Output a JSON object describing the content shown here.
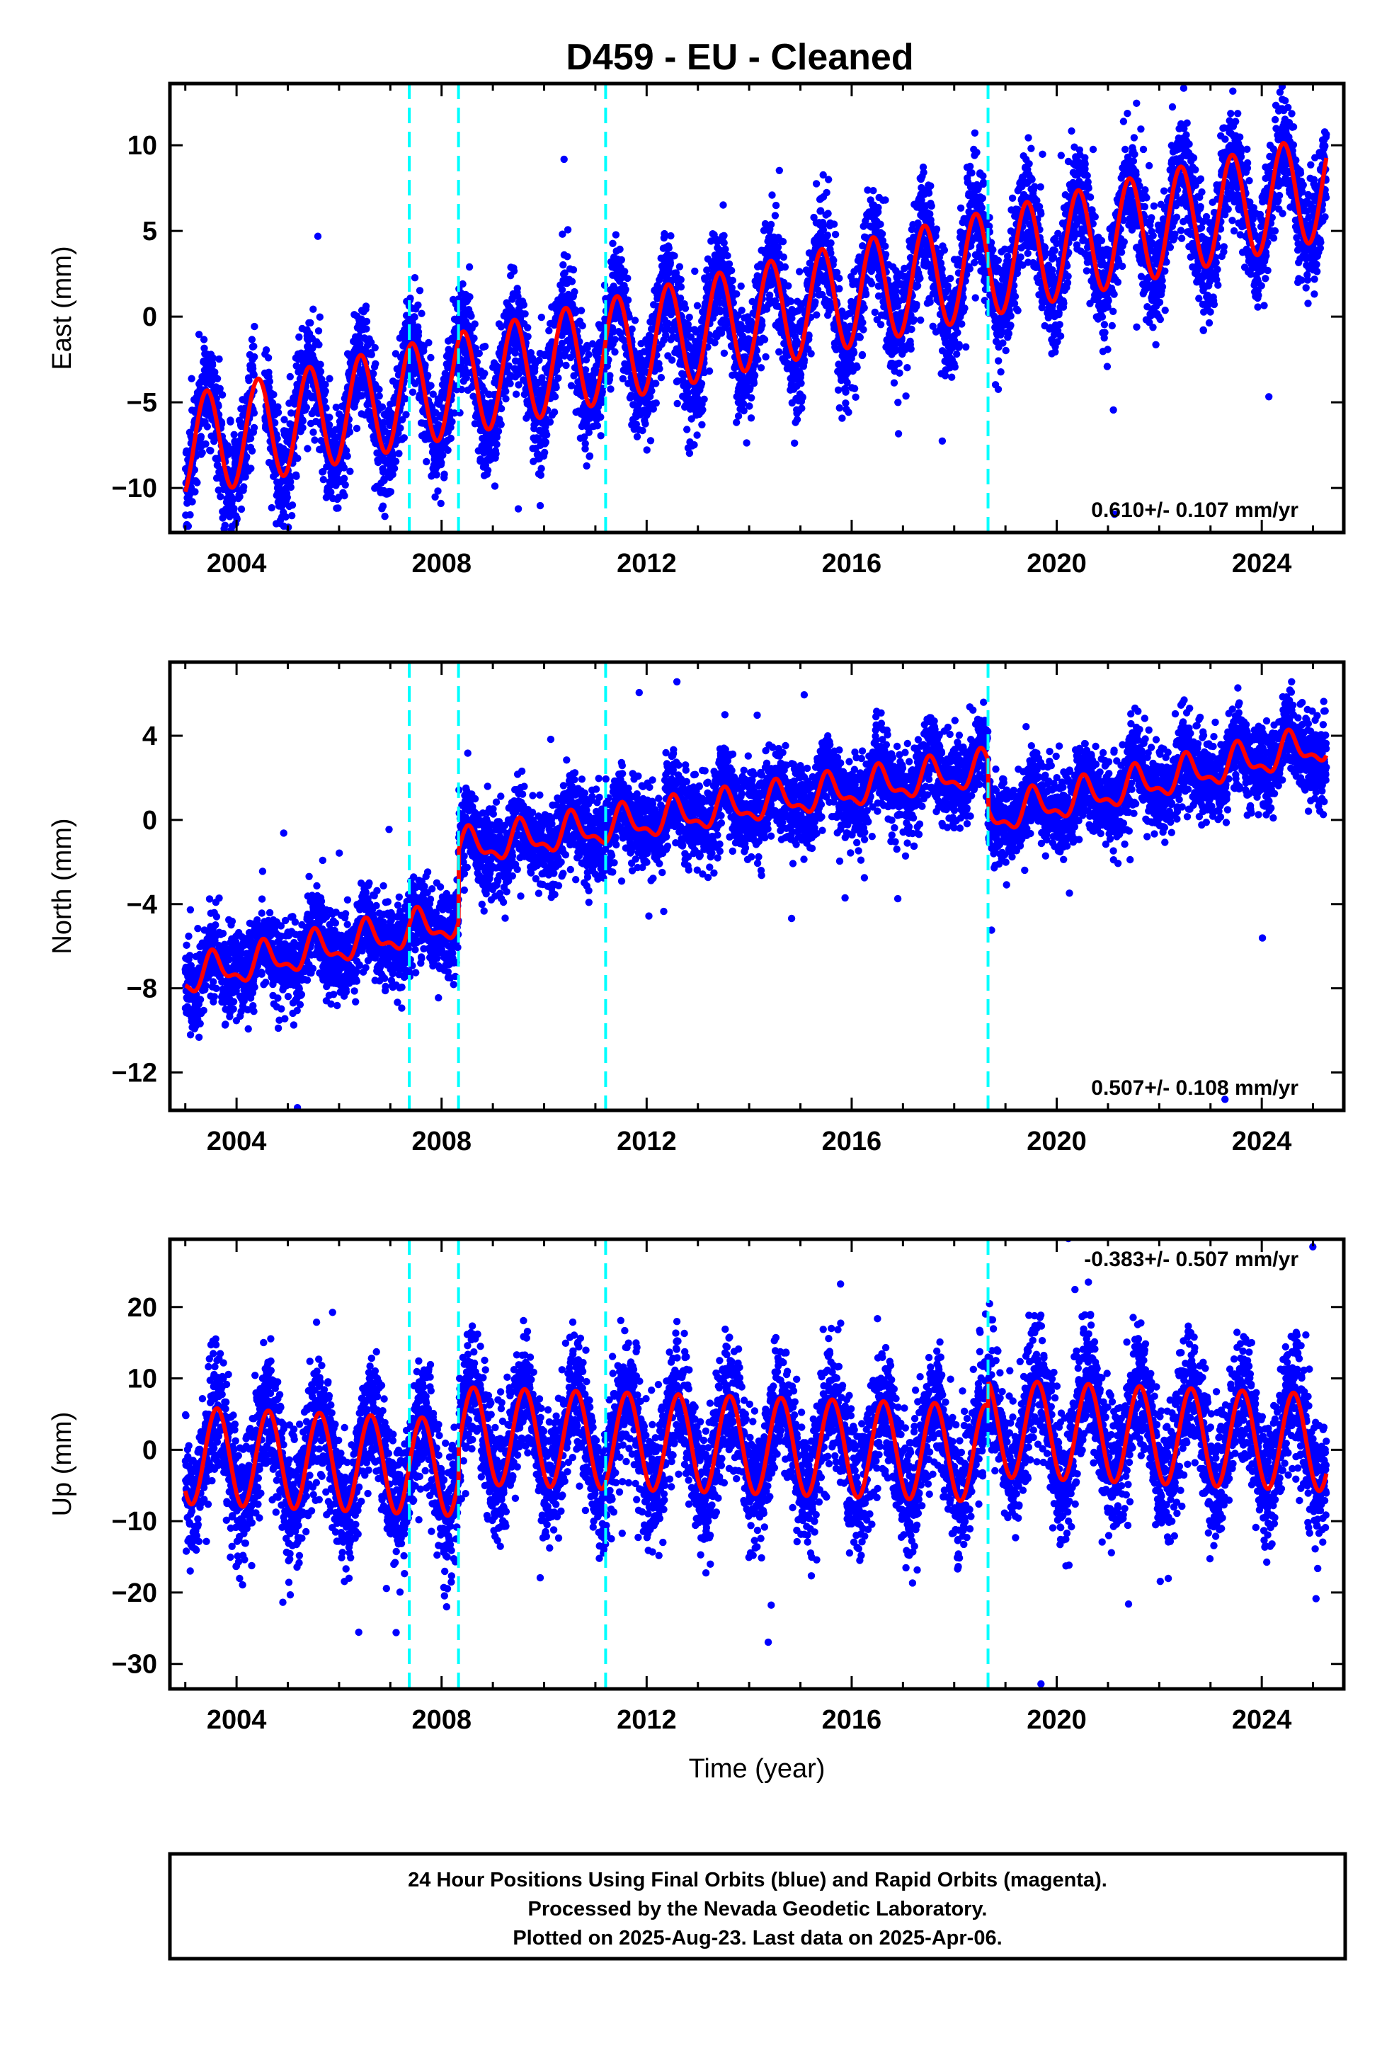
{
  "title": "D459  - EU - Cleaned",
  "footer": {
    "lines": [
      "24 Hour Positions Using Final Orbits (blue) and Rapid Orbits (magenta).",
      "Processed by the Nevada Geodetic Laboratory.",
      "Plotted on 2025-Aug-23. Last data on 2025-Apr-06."
    ]
  },
  "chart_data": [
    {
      "type": "scatter",
      "ylabel": "East (mm)",
      "xlabel": "",
      "xlim": [
        2002.7,
        2025.6
      ],
      "ylim": [
        -12.6,
        13.6
      ],
      "xticks": [
        2004,
        2008,
        2012,
        2016,
        2020,
        2024
      ],
      "yticks": [
        -10,
        -5,
        0,
        5,
        10
      ],
      "ytick_labels": [
        "−10",
        "−5",
        "0",
        "5",
        "10"
      ],
      "rate_label": "0.610+/- 0.107 mm/yr",
      "rate_position": "bottom-right",
      "offset_lines": [
        2007.37,
        2008.33,
        2011.2,
        2018.66
      ],
      "colors": {
        "points": "#0000ff",
        "model": "#ff0000",
        "offsets": "#00ffff"
      },
      "model": {
        "start": 2003.0,
        "end": 2025.26,
        "points": [
          [
            2003.0,
            -7.6
          ],
          [
            2025.26,
            7.6
          ]
        ],
        "annual_amplitude_start": 3.0,
        "annual_amplitude_end": 3.1,
        "peak_phase": 0.42
      },
      "scatter_summary": {
        "spread_mm": 1.6,
        "gaps": [
          [
            2004.35,
            2004.55
          ]
        ]
      }
    },
    {
      "type": "scatter",
      "ylabel": "North (mm)",
      "xlabel": "",
      "xlim": [
        2002.7,
        2025.6
      ],
      "ylim": [
        -13.8,
        7.5
      ],
      "xticks": [
        2004,
        2008,
        2012,
        2016,
        2020,
        2024
      ],
      "yticks": [
        -12,
        -8,
        -4,
        0,
        4
      ],
      "ytick_labels": [
        "−12",
        "−8",
        "−4",
        "0",
        "4"
      ],
      "rate_label": "0.507+/- 0.108 mm/yr",
      "rate_position": "bottom-right",
      "offset_lines": [
        2007.37,
        2008.33,
        2011.2,
        2018.66
      ],
      "colors": {
        "points": "#0000ff",
        "model": "#ff0000",
        "offsets": "#00ffff"
      },
      "model": {
        "segments": [
          {
            "start": 2003.0,
            "end": 2008.33,
            "from": -7.5,
            "to": -4.8
          },
          {
            "start": 2008.33,
            "end": 2018.66,
            "from": -1.4,
            "to": 2.4
          },
          {
            "start": 2018.66,
            "end": 2025.26,
            "from": 0.1,
            "to": 3.6
          }
        ],
        "annual_amplitude": 0.75,
        "semiannual_amplitude": 0.35,
        "peak_phase": 0.55
      },
      "scatter_summary": {
        "spread_mm": 1.0
      }
    },
    {
      "type": "scatter",
      "ylabel": "Up (mm)",
      "xlabel": "Time (year)",
      "xlim": [
        2002.7,
        2025.6
      ],
      "ylim": [
        -33.5,
        29.5
      ],
      "xticks": [
        2004,
        2008,
        2012,
        2016,
        2020,
        2024
      ],
      "yticks": [
        -30,
        -20,
        -10,
        0,
        10,
        20
      ],
      "ytick_labels": [
        "−30",
        "−20",
        "−10",
        "0",
        "10",
        "20"
      ],
      "rate_label": "-0.383+/- 0.507 mm/yr",
      "rate_position": "top-right",
      "offset_lines": [
        2007.37,
        2008.33,
        2011.2,
        2018.66
      ],
      "colors": {
        "points": "#0000ff",
        "model": "#ff0000",
        "offsets": "#00ffff"
      },
      "model": {
        "segments": [
          {
            "start": 2003.0,
            "end": 2008.33,
            "from": -0.8,
            "to": -2.5
          },
          {
            "start": 2008.33,
            "end": 2018.66,
            "from": 2.0,
            "to": -0.5
          },
          {
            "start": 2018.66,
            "end": 2025.26,
            "from": 3.0,
            "to": 1.0
          }
        ],
        "annual_amplitude": 6.8,
        "peak_phase": 0.62
      },
      "scatter_summary": {
        "spread_mm": 4.5
      }
    }
  ]
}
